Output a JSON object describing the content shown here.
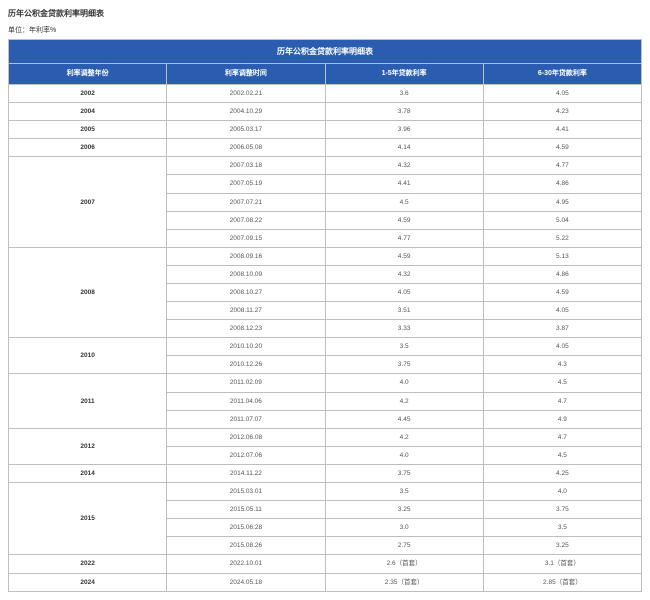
{
  "page_title": "历年公积金贷款利率明细表",
  "unit_label": "单位：年利率%",
  "table_title": "历年公积金贷款利率明细表",
  "columns": [
    "利率调整年份",
    "利率调整时间",
    "1-5年贷款利率",
    "6-30年贷款利率"
  ],
  "groups": [
    {
      "year": "2002",
      "rows": [
        [
          "2002.02.21",
          "3.6",
          "4.05"
        ]
      ]
    },
    {
      "year": "2004",
      "rows": [
        [
          "2004.10.29",
          "3.78",
          "4.23"
        ]
      ]
    },
    {
      "year": "2005",
      "rows": [
        [
          "2005.03.17",
          "3.96",
          "4.41"
        ]
      ]
    },
    {
      "year": "2006",
      "rows": [
        [
          "2006.05.08",
          "4.14",
          "4.59"
        ]
      ]
    },
    {
      "year": "2007",
      "rows": [
        [
          "2007.03.18",
          "4.32",
          "4.77"
        ],
        [
          "2007.05.19",
          "4.41",
          "4.86"
        ],
        [
          "2007.07.21",
          "4.5",
          "4.95"
        ],
        [
          "2007.08.22",
          "4.59",
          "5.04"
        ],
        [
          "2007.09.15",
          "4.77",
          "5.22"
        ]
      ]
    },
    {
      "year": "2008",
      "rows": [
        [
          "2008.09.16",
          "4.59",
          "5.13"
        ],
        [
          "2008.10.09",
          "4.32",
          "4.86"
        ],
        [
          "2008.10.27",
          "4.05",
          "4.59"
        ],
        [
          "2008.11.27",
          "3.51",
          "4.05"
        ],
        [
          "2008.12.23",
          "3.33",
          "3.87"
        ]
      ]
    },
    {
      "year": "2010",
      "rows": [
        [
          "2010.10.20",
          "3.5",
          "4.05"
        ],
        [
          "2010.12.26",
          "3.75",
          "4.3"
        ]
      ]
    },
    {
      "year": "2011",
      "rows": [
        [
          "2011.02.09",
          "4.0",
          "4.5"
        ],
        [
          "2011.04.06",
          "4.2",
          "4.7"
        ],
        [
          "2011.07.07",
          "4.45",
          "4.9"
        ]
      ]
    },
    {
      "year": "2012",
      "rows": [
        [
          "2012.06.08",
          "4.2",
          "4.7"
        ],
        [
          "2012.07.06",
          "4.0",
          "4.5"
        ]
      ]
    },
    {
      "year": "2014",
      "rows": [
        [
          "2014.11.22",
          "3.75",
          "4.25"
        ]
      ]
    },
    {
      "year": "2015",
      "rows": [
        [
          "2015.03.01",
          "3.5",
          "4.0"
        ],
        [
          "2015.05.11",
          "3.25",
          "3.75"
        ],
        [
          "2015.06.28",
          "3.0",
          "3.5"
        ],
        [
          "2015.08.26",
          "2.75",
          "3.25"
        ]
      ]
    },
    {
      "year": "2022",
      "rows": [
        [
          "2022.10.01",
          "2.6（首套）",
          "3.1（首套）"
        ]
      ]
    },
    {
      "year": "2024",
      "rows": [
        [
          "2024.05.18",
          "2.35（首套）",
          "2.85（首套）"
        ]
      ]
    }
  ]
}
